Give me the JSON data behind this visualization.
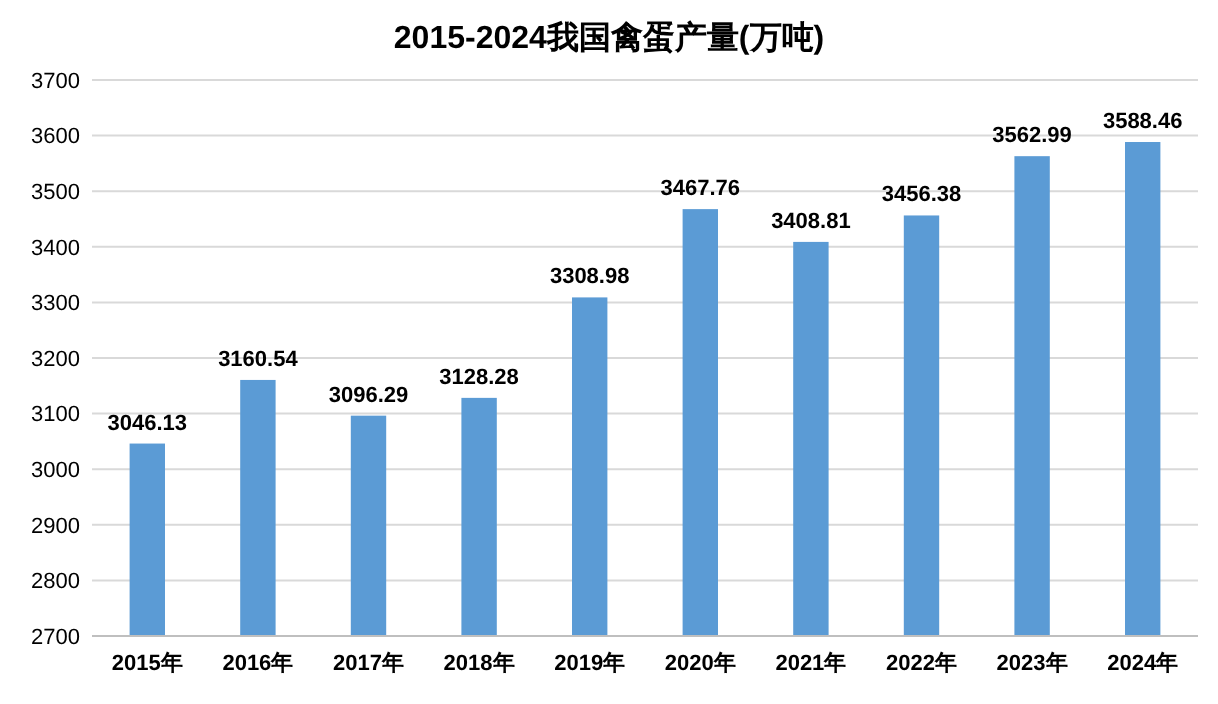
{
  "chart_data": {
    "type": "bar",
    "title": "2015-2024我国禽蛋产量(万吨)",
    "categories": [
      "2015年",
      "2016年",
      "2017年",
      "2018年",
      "2019年",
      "2020年",
      "2021年",
      "2022年",
      "2023年",
      "2024年"
    ],
    "values": [
      3046.13,
      3160.54,
      3096.29,
      3128.28,
      3308.98,
      3467.76,
      3408.81,
      3456.38,
      3562.99,
      3588.46
    ],
    "color": "#5b9bd5",
    "ylim": [
      2700,
      3700
    ],
    "yticks": [
      2700,
      2800,
      2900,
      3000,
      3100,
      3200,
      3300,
      3400,
      3500,
      3600,
      3700
    ],
    "grid": "y",
    "data_labels": true
  }
}
